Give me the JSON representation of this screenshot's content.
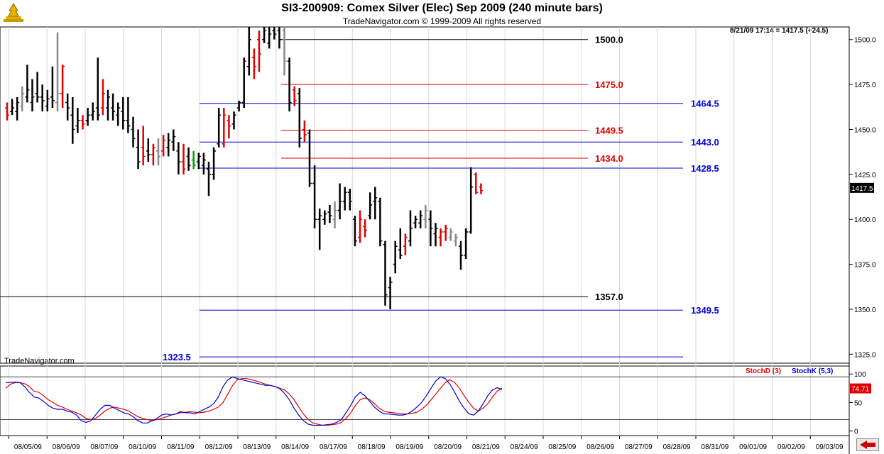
{
  "header": {
    "title": "SI3-200909:  Comex Silver (Elec) Sep 2009  (240 minute bars)",
    "subtitle": "TradeNavigator.com © 1999-2009 All rights reserved",
    "last_quote": "8/21/09 17:14 = 1417.5 (+24.5)",
    "watermark": "TradeNavigator.com"
  },
  "chart_data": [
    {
      "type": "bar",
      "subtype": "ohlc",
      "title": "SI3-200909:  Comex Silver (Elec) Sep 2009  (240 minute bars)",
      "x_tick_labels": [
        "08/05/09",
        "08/06/09",
        "08/07/09",
        "08/10/09",
        "08/11/09",
        "08/12/09",
        "08/13/09",
        "08/14/09",
        "08/17/09",
        "08/18/09",
        "08/19/09",
        "08/20/09",
        "08/21/09",
        "08/24/09",
        "08/25/09",
        "08/26/09",
        "08/27/09",
        "08/28/09",
        "08/31/09",
        "09/01/09",
        "09/02/09",
        "09/03/09"
      ],
      "y_tick_labels": [
        "1500.0",
        "1475.0",
        "1450.0",
        "1425.0",
        "1400.0",
        "1375.0",
        "1350.0",
        "1325.0"
      ],
      "ylim": [
        1320,
        1507
      ],
      "last_price_label": "1417.5",
      "bar_colors": {
        "up": "#000000",
        "down": "#e00000",
        "neutral": "#8a8a8a"
      },
      "bars": [
        {
          "h": 1465,
          "l": 1455,
          "o": 1462,
          "c": 1458,
          "k": "d"
        },
        {
          "h": 1467,
          "l": 1458,
          "o": 1460,
          "c": 1462,
          "k": "u"
        },
        {
          "h": 1468,
          "l": 1455,
          "o": 1460,
          "c": 1465,
          "k": "u"
        },
        {
          "h": 1474,
          "l": 1460,
          "o": 1463,
          "c": 1470,
          "k": "n"
        },
        {
          "h": 1486,
          "l": 1465,
          "o": 1468,
          "c": 1472,
          "k": "u"
        },
        {
          "h": 1478,
          "l": 1460,
          "o": 1465,
          "c": 1468,
          "k": "u"
        },
        {
          "h": 1482,
          "l": 1465,
          "o": 1470,
          "c": 1468,
          "k": "u"
        },
        {
          "h": 1475,
          "l": 1460,
          "o": 1468,
          "c": 1466,
          "k": "u"
        },
        {
          "h": 1472,
          "l": 1460,
          "o": 1463,
          "c": 1467,
          "k": "u"
        },
        {
          "h": 1485,
          "l": 1462,
          "o": 1468,
          "c": 1466,
          "k": "u"
        },
        {
          "h": 1504,
          "l": 1460,
          "o": 1465,
          "c": 1470,
          "k": "n"
        },
        {
          "h": 1486,
          "l": 1462,
          "o": 1470,
          "c": 1485,
          "k": "d"
        },
        {
          "h": 1470,
          "l": 1455,
          "o": 1465,
          "c": 1462,
          "k": "u"
        },
        {
          "h": 1468,
          "l": 1442,
          "o": 1458,
          "c": 1450,
          "k": "u"
        },
        {
          "h": 1462,
          "l": 1448,
          "o": 1452,
          "c": 1455,
          "k": "u"
        },
        {
          "h": 1458,
          "l": 1450,
          "o": 1455,
          "c": 1453,
          "k": "d"
        },
        {
          "h": 1462,
          "l": 1452,
          "o": 1455,
          "c": 1458,
          "k": "u"
        },
        {
          "h": 1465,
          "l": 1455,
          "o": 1458,
          "c": 1460,
          "k": "u"
        },
        {
          "h": 1490,
          "l": 1455,
          "o": 1462,
          "c": 1458,
          "k": "u"
        },
        {
          "h": 1478,
          "l": 1458,
          "o": 1462,
          "c": 1470,
          "k": "d"
        },
        {
          "h": 1472,
          "l": 1455,
          "o": 1462,
          "c": 1468,
          "k": "u"
        },
        {
          "h": 1470,
          "l": 1455,
          "o": 1462,
          "c": 1460,
          "k": "u"
        },
        {
          "h": 1465,
          "l": 1452,
          "o": 1458,
          "c": 1462,
          "k": "u"
        },
        {
          "h": 1468,
          "l": 1450,
          "o": 1460,
          "c": 1455,
          "k": "u"
        },
        {
          "h": 1468,
          "l": 1448,
          "o": 1455,
          "c": 1452,
          "k": "u"
        },
        {
          "h": 1457,
          "l": 1440,
          "o": 1450,
          "c": 1445,
          "k": "u"
        },
        {
          "h": 1450,
          "l": 1428,
          "o": 1440,
          "c": 1432,
          "k": "u"
        },
        {
          "h": 1452,
          "l": 1430,
          "o": 1440,
          "c": 1435,
          "k": "d"
        },
        {
          "h": 1445,
          "l": 1432,
          "o": 1438,
          "c": 1436,
          "k": "u"
        },
        {
          "h": 1442,
          "l": 1430,
          "o": 1436,
          "c": 1440,
          "k": "d"
        },
        {
          "h": 1445,
          "l": 1430,
          "o": 1438,
          "c": 1435,
          "k": "n"
        },
        {
          "h": 1447,
          "l": 1435,
          "o": 1438,
          "c": 1444,
          "k": "d"
        },
        {
          "h": 1448,
          "l": 1435,
          "o": 1440,
          "c": 1444,
          "k": "u"
        },
        {
          "h": 1450,
          "l": 1438,
          "o": 1443,
          "c": 1446,
          "k": "u"
        },
        {
          "h": 1443,
          "l": 1425,
          "o": 1438,
          "c": 1432,
          "k": "u"
        },
        {
          "h": 1442,
          "l": 1425,
          "o": 1432,
          "c": 1428,
          "k": "d"
        },
        {
          "h": 1440,
          "l": 1427,
          "o": 1435,
          "c": 1430,
          "k": "u"
        },
        {
          "h": 1438,
          "l": 1428,
          "o": 1433,
          "c": 1430,
          "k": "g"
        },
        {
          "h": 1437,
          "l": 1428,
          "o": 1432,
          "c": 1435,
          "k": "u"
        },
        {
          "h": 1437,
          "l": 1425,
          "o": 1430,
          "c": 1433,
          "k": "u"
        },
        {
          "h": 1432,
          "l": 1413,
          "o": 1428,
          "c": 1425,
          "k": "u"
        },
        {
          "h": 1440,
          "l": 1422,
          "o": 1425,
          "c": 1438,
          "k": "u"
        },
        {
          "h": 1462,
          "l": 1440,
          "o": 1442,
          "c": 1458,
          "k": "u"
        },
        {
          "h": 1462,
          "l": 1440,
          "o": 1442,
          "c": 1458,
          "k": "d"
        },
        {
          "h": 1458,
          "l": 1445,
          "o": 1455,
          "c": 1452,
          "k": "d"
        },
        {
          "h": 1460,
          "l": 1450,
          "o": 1453,
          "c": 1458,
          "k": "u"
        },
        {
          "h": 1466,
          "l": 1460,
          "o": 1462,
          "c": 1465,
          "k": "u"
        },
        {
          "h": 1490,
          "l": 1462,
          "o": 1465,
          "c": 1488,
          "k": "u"
        },
        {
          "h": 1507,
          "l": 1480,
          "o": 1485,
          "c": 1500,
          "k": "u"
        },
        {
          "h": 1495,
          "l": 1478,
          "o": 1490,
          "c": 1485,
          "k": "d"
        },
        {
          "h": 1505,
          "l": 1482,
          "o": 1500,
          "c": 1492,
          "k": "d"
        },
        {
          "h": 1507,
          "l": 1498,
          "o": 1500,
          "c": 1505,
          "k": "u"
        },
        {
          "h": 1507,
          "l": 1495,
          "o": 1498,
          "c": 1503,
          "k": "u"
        },
        {
          "h": 1507,
          "l": 1500,
          "o": 1505,
          "c": 1503,
          "k": "u"
        },
        {
          "h": 1507,
          "l": 1495,
          "o": 1505,
          "c": 1500,
          "k": "u"
        },
        {
          "h": 1507,
          "l": 1480,
          "o": 1505,
          "c": 1488,
          "k": "n"
        },
        {
          "h": 1490,
          "l": 1460,
          "o": 1488,
          "c": 1465,
          "k": "u"
        },
        {
          "h": 1474,
          "l": 1463,
          "o": 1472,
          "c": 1466,
          "k": "d"
        },
        {
          "h": 1473,
          "l": 1440,
          "o": 1470,
          "c": 1445,
          "k": "u"
        },
        {
          "h": 1455,
          "l": 1443,
          "o": 1450,
          "c": 1447,
          "k": "d"
        },
        {
          "h": 1450,
          "l": 1418,
          "o": 1448,
          "c": 1420,
          "k": "u"
        },
        {
          "h": 1430,
          "l": 1395,
          "o": 1420,
          "c": 1400,
          "k": "u"
        },
        {
          "h": 1406,
          "l": 1383,
          "o": 1400,
          "c": 1402,
          "k": "u"
        },
        {
          "h": 1405,
          "l": 1397,
          "o": 1400,
          "c": 1403,
          "k": "u"
        },
        {
          "h": 1408,
          "l": 1398,
          "o": 1404,
          "c": 1402,
          "k": "u"
        },
        {
          "h": 1410,
          "l": 1395,
          "o": 1400,
          "c": 1405,
          "k": "n"
        },
        {
          "h": 1420,
          "l": 1400,
          "o": 1405,
          "c": 1410,
          "k": "u"
        },
        {
          "h": 1418,
          "l": 1405,
          "o": 1410,
          "c": 1415,
          "k": "u"
        },
        {
          "h": 1417,
          "l": 1405,
          "o": 1415,
          "c": 1410,
          "k": "u"
        },
        {
          "h": 1402,
          "l": 1385,
          "o": 1400,
          "c": 1388,
          "k": "u"
        },
        {
          "h": 1405,
          "l": 1387,
          "o": 1390,
          "c": 1400,
          "k": "d"
        },
        {
          "h": 1400,
          "l": 1390,
          "o": 1396,
          "c": 1394,
          "k": "d"
        },
        {
          "h": 1415,
          "l": 1400,
          "o": 1402,
          "c": 1408,
          "k": "u"
        },
        {
          "h": 1418,
          "l": 1400,
          "o": 1410,
          "c": 1412,
          "k": "u"
        },
        {
          "h": 1412,
          "l": 1385,
          "o": 1410,
          "c": 1388,
          "k": "u"
        },
        {
          "h": 1388,
          "l": 1352,
          "o": 1386,
          "c": 1358,
          "k": "u"
        },
        {
          "h": 1368,
          "l": 1350,
          "o": 1362,
          "c": 1365,
          "k": "u"
        },
        {
          "h": 1388,
          "l": 1370,
          "o": 1375,
          "c": 1385,
          "k": "u"
        },
        {
          "h": 1395,
          "l": 1378,
          "o": 1383,
          "c": 1380,
          "k": "u"
        },
        {
          "h": 1392,
          "l": 1380,
          "o": 1385,
          "c": 1390,
          "k": "d"
        },
        {
          "h": 1405,
          "l": 1385,
          "o": 1388,
          "c": 1395,
          "k": "u"
        },
        {
          "h": 1402,
          "l": 1395,
          "o": 1398,
          "c": 1400,
          "k": "u"
        },
        {
          "h": 1405,
          "l": 1395,
          "o": 1398,
          "c": 1402,
          "k": "u"
        },
        {
          "h": 1408,
          "l": 1395,
          "o": 1400,
          "c": 1405,
          "k": "n"
        },
        {
          "h": 1405,
          "l": 1385,
          "o": 1400,
          "c": 1395,
          "k": "u"
        },
        {
          "h": 1398,
          "l": 1385,
          "o": 1392,
          "c": 1395,
          "k": "u"
        },
        {
          "h": 1395,
          "l": 1385,
          "o": 1390,
          "c": 1393,
          "k": "d"
        },
        {
          "h": 1397,
          "l": 1388,
          "o": 1393,
          "c": 1395,
          "k": "d"
        },
        {
          "h": 1395,
          "l": 1388,
          "o": 1390,
          "c": 1393,
          "k": "n"
        },
        {
          "h": 1392,
          "l": 1385,
          "o": 1388,
          "c": 1390,
          "k": "n"
        },
        {
          "h": 1388,
          "l": 1372,
          "o": 1385,
          "c": 1380,
          "k": "u"
        },
        {
          "h": 1395,
          "l": 1378,
          "o": 1380,
          "c": 1393,
          "k": "u"
        },
        {
          "h": 1429,
          "l": 1392,
          "o": 1393,
          "c": 1418,
          "k": "u"
        },
        {
          "h": 1426,
          "l": 1414,
          "o": 1425,
          "c": 1415,
          "k": "d"
        },
        {
          "h": 1420,
          "l": 1414,
          "o": 1418,
          "c": 1416,
          "k": "d"
        }
      ],
      "price_levels": [
        {
          "value": 1500.0,
          "label": "1500.0",
          "color": "#000000",
          "label_col": "inner"
        },
        {
          "value": 1475.0,
          "label": "1475.0",
          "color": "#e00000",
          "label_col": "inner"
        },
        {
          "value": 1464.5,
          "label": "1464.5",
          "color": "#0000d0",
          "label_col": "outer"
        },
        {
          "value": 1449.5,
          "label": "1449.5",
          "color": "#e00000",
          "label_col": "inner"
        },
        {
          "value": 1443.0,
          "label": "1443.0",
          "color": "#0000d0",
          "label_col": "outer"
        },
        {
          "value": 1434.0,
          "label": "1434.0",
          "color": "#e00000",
          "label_col": "inner"
        },
        {
          "value": 1428.5,
          "label": "1428.5",
          "color": "#0000d0",
          "label_col": "outer"
        },
        {
          "value": 1357.0,
          "label": "1357.0",
          "color": "#000000",
          "label_col": "inner"
        },
        {
          "value": 1349.5,
          "label": "1349.5",
          "color": "#0000d0",
          "label_col": "outer"
        },
        {
          "value": 1323.5,
          "label": "1323.5",
          "color": "#0000d0",
          "label_col": "left"
        }
      ]
    },
    {
      "type": "line",
      "title": "",
      "legend": [
        {
          "name": "StochD (3)",
          "color": "#e00000"
        },
        {
          "name": "StochK (5,3)",
          "color": "#0000d0"
        }
      ],
      "y_tick_labels": [
        "100",
        "50",
        "0"
      ],
      "ylim": [
        -8,
        114
      ],
      "reference_lines": [
        95,
        20
      ],
      "last_value_label": "74.71",
      "series": [
        {
          "name": "StochD (3)",
          "color": "#e00000",
          "values": [
            75,
            82,
            85,
            85,
            83,
            78,
            70,
            68,
            62,
            55,
            50,
            45,
            42,
            38,
            35,
            32,
            28,
            22,
            20,
            22,
            28,
            35,
            40,
            42,
            40,
            38,
            35,
            30,
            25,
            22,
            20,
            18,
            20,
            22,
            25,
            28,
            30,
            32,
            33,
            34,
            33,
            32,
            33,
            35,
            38,
            42,
            50,
            65,
            80,
            90,
            92,
            92,
            90,
            88,
            85,
            82,
            80,
            78,
            75,
            72,
            65,
            55,
            42,
            30,
            20,
            14,
            12,
            10,
            10,
            11,
            12,
            15,
            22,
            32,
            45,
            55,
            58,
            55,
            48,
            40,
            35,
            33,
            32,
            31,
            30,
            30,
            31,
            33,
            38,
            45,
            55,
            65,
            75,
            85,
            90,
            85,
            75,
            62,
            50,
            40,
            35,
            40,
            48,
            60,
            70,
            75
          ]
        },
        {
          "name": "StochK (5,3)",
          "color": "#0000d0",
          "values": [
            85,
            85,
            86,
            85,
            78,
            68,
            60,
            58,
            52,
            45,
            40,
            38,
            38,
            35,
            33,
            28,
            18,
            15,
            18,
            28,
            38,
            45,
            45,
            40,
            36,
            32,
            30,
            25,
            18,
            14,
            14,
            18,
            22,
            28,
            30,
            28,
            30,
            34,
            32,
            32,
            30,
            34,
            38,
            42,
            48,
            60,
            78,
            90,
            95,
            92,
            90,
            88,
            86,
            84,
            82,
            80,
            80,
            78,
            74,
            66,
            55,
            40,
            28,
            18,
            12,
            10,
            10,
            10,
            11,
            12,
            15,
            20,
            32,
            45,
            60,
            68,
            62,
            52,
            42,
            35,
            30,
            30,
            29,
            28,
            28,
            30,
            35,
            42,
            50,
            62,
            75,
            88,
            95,
            92,
            82,
            68,
            52,
            40,
            30,
            28,
            35,
            48,
            62,
            72,
            76,
            73
          ]
        }
      ]
    }
  ]
}
